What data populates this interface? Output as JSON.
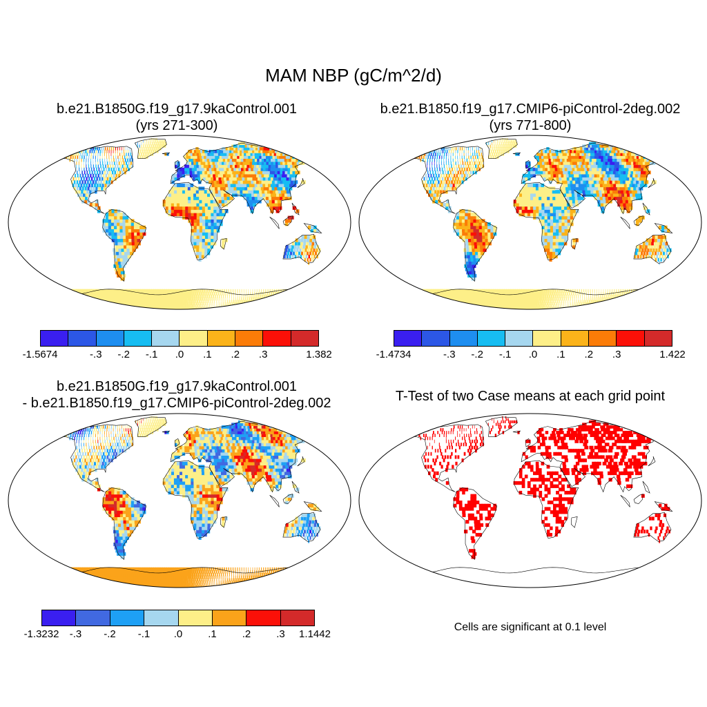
{
  "title": "MAM NBP (gC/m^2/d)",
  "panels": [
    {
      "title_line1": "b.e21.B1850G.f19_g17.9kaControl.001",
      "title_line2": "(yrs 271-300)",
      "colorbar": {
        "colors": [
          "#3a1ff0",
          "#2c57e6",
          "#1e8ef0",
          "#17bdf2",
          "#a6d7ef",
          "#fdef88",
          "#fbb31a",
          "#fb7c08",
          "#fb1008",
          "#d42a2a"
        ],
        "labels": [
          "-1.5674",
          "-.3",
          "-.2",
          "-.1",
          ".0",
          ".1",
          ".2",
          ".3",
          "1.382"
        ]
      }
    },
    {
      "title_line1": "b.e21.B1850.f19_g17.CMIP6-piControl-2deg.002",
      "title_line2": "(yrs 771-800)",
      "colorbar": {
        "colors": [
          "#3a1ff0",
          "#2c57e6",
          "#1e8ef0",
          "#17bdf2",
          "#a6d7ef",
          "#fdef88",
          "#fbb31a",
          "#fb7c08",
          "#fb1008",
          "#d42a2a"
        ],
        "labels": [
          "-1.4734",
          "-.3",
          "-.2",
          "-.1",
          ".0",
          ".1",
          ".2",
          ".3",
          "1.422"
        ]
      }
    },
    {
      "title_line1": "b.e21.B1850G.f19_g17.9kaControl.001",
      "title_line2": "- b.e21.B1850.f19_g17.CMIP6-piControl-2deg.002",
      "colorbar": {
        "colors": [
          "#3a1ff0",
          "#4169e1",
          "#1ea0f5",
          "#a6d7ef",
          "#fdef88",
          "#fba31a",
          "#fb1008",
          "#d42a2a"
        ],
        "labels": [
          "-1.3232",
          "-.3",
          "-.2",
          "-.1",
          ".0",
          ".1",
          ".2",
          ".3",
          "1.1442"
        ]
      }
    },
    {
      "title_line1": "T-Test of two Case means at each grid point",
      "note": "Cells are significant at 0.1 level"
    }
  ]
}
